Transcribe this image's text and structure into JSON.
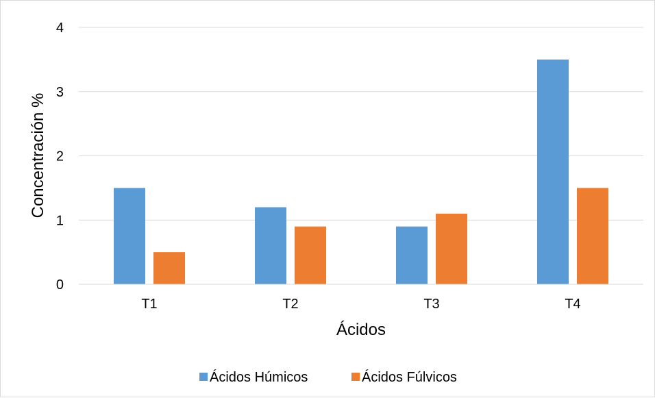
{
  "chart_data": {
    "type": "bar",
    "title": "",
    "xlabel": "Ácidos",
    "ylabel": "Concentración %",
    "categories": [
      "T1",
      "T2",
      "T3",
      "T4"
    ],
    "series": [
      {
        "name": "Ácidos Húmicos",
        "color": "#5b9bd5",
        "values": [
          1.5,
          1.2,
          0.9,
          3.5
        ]
      },
      {
        "name": "Ácidos Fúlvicos",
        "color": "#ed7d31",
        "values": [
          0.5,
          0.9,
          1.1,
          1.5
        ]
      }
    ],
    "ylim": [
      0,
      4
    ],
    "yticks": [
      0,
      1,
      2,
      3,
      4
    ],
    "grid": true,
    "legend_position": "bottom"
  }
}
